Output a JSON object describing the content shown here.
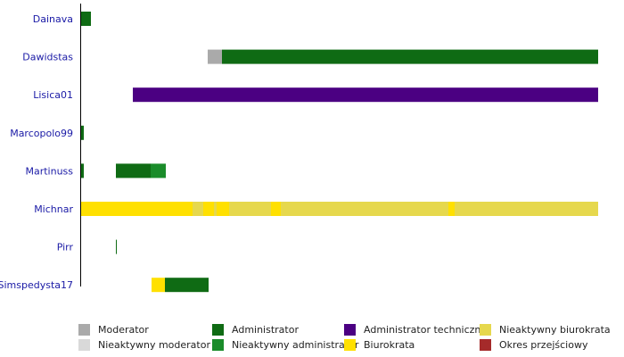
{
  "chart_data": {
    "type": "timeline",
    "users": [
      "Dainava",
      "Dawidstas",
      "Lisica01",
      "Marcopolo99",
      "Martinuss",
      "Michnar",
      "Pirr",
      "Simspedysta17"
    ],
    "role_colors": {
      "Moderator": "#aaaaaa",
      "Nieaktywny moderator": "#d9d9d9",
      "Administrator": "#0f6b14",
      "Nieaktywny administrator": "#1a8c2a",
      "Administrator techniczny": "#4b0082",
      "Biurokrata": "#ffe000",
      "Nieaktywny biurokrata": "#e6d84d",
      "Okres przejściowy": "#a52a2a"
    },
    "x_range": [
      0,
      580
    ],
    "segments": [
      {
        "user": "Dainava",
        "role": "Administrator",
        "start": 0,
        "end": 11
      },
      {
        "user": "Dawidstas",
        "role": "Moderator",
        "start": 142,
        "end": 158
      },
      {
        "user": "Dawidstas",
        "role": "Administrator",
        "start": 158,
        "end": 580
      },
      {
        "user": "Lisica01",
        "role": "Administrator techniczny",
        "start": 58,
        "end": 580
      },
      {
        "user": "Marcopolo99",
        "role": "Administrator",
        "start": 0,
        "end": 3
      },
      {
        "user": "Martinuss",
        "role": "Administrator",
        "start": 0,
        "end": 3
      },
      {
        "user": "Martinuss",
        "role": "Administrator",
        "start": 39,
        "end": 78
      },
      {
        "user": "Martinuss",
        "role": "Nieaktywny administrator",
        "start": 78,
        "end": 95
      },
      {
        "user": "Michnar",
        "role": "Biurokrata",
        "start": 0,
        "end": 125
      },
      {
        "user": "Michnar",
        "role": "Nieaktywny biurokrata",
        "start": 125,
        "end": 137
      },
      {
        "user": "Michnar",
        "role": "Biurokrata",
        "start": 137,
        "end": 149
      },
      {
        "user": "Michnar",
        "role": "Nieaktywny biurokrata",
        "start": 149,
        "end": 152
      },
      {
        "user": "Michnar",
        "role": "Biurokrata",
        "start": 152,
        "end": 166
      },
      {
        "user": "Michnar",
        "role": "Nieaktywny biurokrata",
        "start": 166,
        "end": 213
      },
      {
        "user": "Michnar",
        "role": "Biurokrata",
        "start": 213,
        "end": 224
      },
      {
        "user": "Michnar",
        "role": "Nieaktywny biurokrata",
        "start": 224,
        "end": 412
      },
      {
        "user": "Michnar",
        "role": "Biurokrata",
        "start": 412,
        "end": 419
      },
      {
        "user": "Michnar",
        "role": "Nieaktywny biurokrata",
        "start": 419,
        "end": 580
      },
      {
        "user": "Pirr",
        "role": "Administrator",
        "start": 39,
        "end": 40
      },
      {
        "user": "Simspedysta17",
        "role": "Biurokrata",
        "start": 79,
        "end": 94
      },
      {
        "user": "Simspedysta17",
        "role": "Administrator",
        "start": 94,
        "end": 143
      }
    ],
    "legend": [
      [
        "Moderator",
        "Nieaktywny moderator"
      ],
      [
        "Administrator",
        "Nieaktywny administrator"
      ],
      [
        "Administrator techniczny",
        "Biurokrata"
      ],
      [
        "Nieaktywny biurokrata",
        "Okres przejściowy"
      ]
    ]
  }
}
